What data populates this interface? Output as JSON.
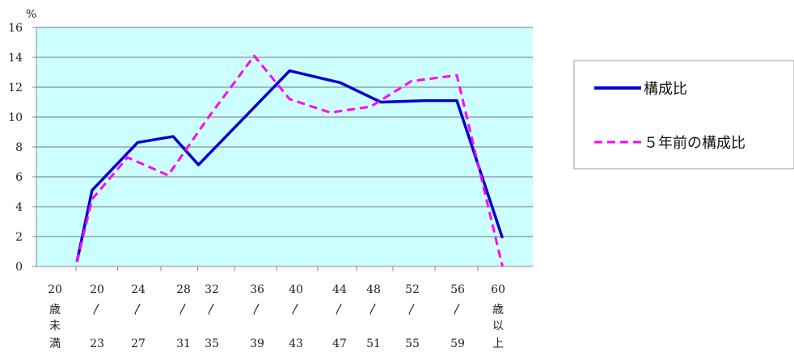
{
  "chart_data": {
    "type": "line",
    "ylim": [
      0,
      16
    ],
    "yticks": [
      0,
      2,
      4,
      6,
      8,
      10,
      12,
      14,
      16
    ],
    "y_unit": "%",
    "grid": true,
    "legend_position": "right",
    "colors": {
      "plot_background": "#ccffff",
      "current": "#0000cc",
      "previous": "#ff00ff"
    },
    "categories": [
      {
        "top": "20",
        "mid": "歳",
        "mid2": "未",
        "bottom": "満"
      },
      {
        "top": "20",
        "mid": "〳",
        "mid2": "",
        "bottom": "23"
      },
      {
        "top": "24",
        "mid": "〳",
        "mid2": "",
        "bottom": "27"
      },
      {
        "top": "28",
        "mid": "〳",
        "mid2": "",
        "bottom": "31"
      },
      {
        "top": "32",
        "mid": "〳",
        "mid2": "",
        "bottom": "35"
      },
      {
        "top": "36",
        "mid": "〳",
        "mid2": "",
        "bottom": "39"
      },
      {
        "top": "40",
        "mid": "〳",
        "mid2": "",
        "bottom": "43"
      },
      {
        "top": "44",
        "mid": "〳",
        "mid2": "",
        "bottom": "47"
      },
      {
        "top": "48",
        "mid": "〳",
        "mid2": "",
        "bottom": "51"
      },
      {
        "top": "52",
        "mid": "〳",
        "mid2": "",
        "bottom": "55"
      },
      {
        "top": "56",
        "mid": "〳",
        "mid2": "",
        "bottom": "59"
      },
      {
        "top": "60",
        "mid": "歳",
        "mid2": "以",
        "bottom": "上"
      }
    ],
    "series": [
      {
        "name": "構成比",
        "style": "solid",
        "x": [
          20,
          21.5,
          26,
          29.5,
          32,
          37,
          41,
          46,
          50,
          54.5,
          57.5,
          62
        ],
        "values": [
          0.3,
          5.1,
          8.3,
          8.7,
          6.8,
          10.3,
          13.1,
          12.3,
          11.0,
          11.1,
          11.1,
          1.9
        ]
      },
      {
        "name": "５年前の構成比",
        "style": "dashed",
        "x": [
          20,
          21.5,
          25,
          29,
          33,
          37.5,
          41,
          45,
          49,
          53,
          57.5,
          62
        ],
        "values": [
          0.3,
          4.5,
          7.3,
          6.1,
          10.0,
          14.1,
          11.2,
          10.3,
          10.7,
          12.4,
          12.8,
          0.0
        ]
      }
    ]
  }
}
